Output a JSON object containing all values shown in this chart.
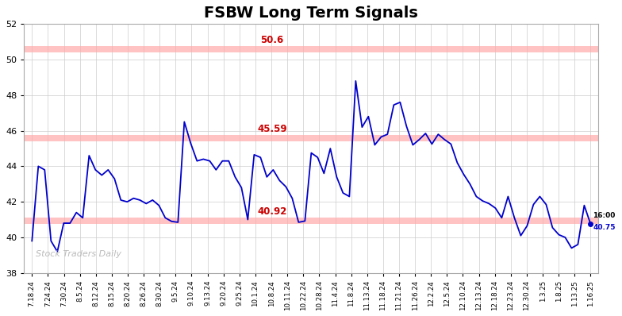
{
  "title": "FSBW Long Term Signals",
  "title_fontsize": 14,
  "title_fontweight": "bold",
  "line_color": "#0000cc",
  "line_width": 1.3,
  "background_color": "#ffffff",
  "grid_color": "#cccccc",
  "hlines": [
    50.6,
    45.59,
    40.92
  ],
  "hline_color": "#ffaaaa",
  "hline_alpha": 0.7,
  "hline_labels": [
    "50.6",
    "45.59",
    "40.92"
  ],
  "hline_label_color": "#cc0000",
  "ylim": [
    38,
    52
  ],
  "yticks": [
    38,
    40,
    42,
    44,
    46,
    48,
    50,
    52
  ],
  "watermark": "Stock Traders Daily",
  "last_label": "16:00",
  "last_value": "40.75",
  "last_dot_color": "#0000cc",
  "xtick_labels": [
    "7.18.24",
    "7.24.24",
    "7.30.24",
    "8.5.24",
    "8.12.24",
    "8.15.24",
    "8.20.24",
    "8.26.24",
    "8.30.24",
    "9.5.24",
    "9.10.24",
    "9.13.24",
    "9.20.24",
    "9.25.24",
    "10.1.24",
    "10.8.24",
    "10.11.24",
    "10.22.24",
    "10.28.24",
    "11.4.24",
    "11.8.24",
    "11.13.24",
    "11.18.24",
    "11.21.24",
    "11.26.24",
    "12.2.24",
    "12.5.24",
    "12.10.24",
    "12.13.24",
    "12.18.24",
    "12.23.24",
    "12.30.24",
    "1.3.25",
    "1.8.25",
    "1.13.25",
    "1.16.25"
  ],
  "prices": [
    39.8,
    44.0,
    43.8,
    39.8,
    39.2,
    40.8,
    40.8,
    41.4,
    41.1,
    44.6,
    43.8,
    43.5,
    43.8,
    43.3,
    42.1,
    42.0,
    42.2,
    42.1,
    41.9,
    42.1,
    41.8,
    41.1,
    40.9,
    40.85,
    46.5,
    45.3,
    44.3,
    44.4,
    44.3,
    43.8,
    44.3,
    44.3,
    43.4,
    42.8,
    41.0,
    44.65,
    44.5,
    43.4,
    43.8,
    43.2,
    42.85,
    42.2,
    40.85,
    40.92,
    44.75,
    44.5,
    43.6,
    45.0,
    43.4,
    42.5,
    42.3,
    48.8,
    46.2,
    46.8,
    45.2,
    45.65,
    45.8,
    47.45,
    47.6,
    46.25,
    45.2,
    45.5,
    45.85,
    45.25,
    45.8,
    45.5,
    45.25,
    44.2,
    43.55,
    43.0,
    42.3,
    42.05,
    41.9,
    41.65,
    41.1,
    42.3,
    41.1,
    40.1,
    40.65,
    41.85,
    42.3,
    41.85,
    40.55,
    40.15,
    40.0,
    39.4,
    39.6,
    41.8,
    40.75
  ]
}
